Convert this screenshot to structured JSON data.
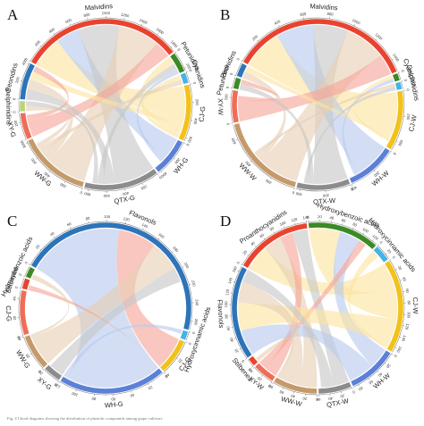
{
  "figure": {
    "caption": "Fig. 4 Chord diagrams showing the distribution of phenolic compounds among grape cultivars"
  },
  "colors": {
    "red": "#e9432f",
    "green": "#3b8a25",
    "yellow": "#f2c21b",
    "skyblue": "#44b4e4",
    "blue": "#2d74b8",
    "olive": "#b9d27a",
    "coral": "#ef6d58",
    "tan": "#c59a6a",
    "gray": "#8c8c8c",
    "periwinkle": "#5b80d6",
    "chord_red": "#f6a598",
    "chord_tan": "#e7cfb3",
    "chord_gray": "#c6c6c6",
    "chord_blue": "#b8c9ef",
    "chord_yellow": "#fbe3a0"
  },
  "chart_data": [
    {
      "panel": "A",
      "type": "chord",
      "segments": [
        {
          "label": "Malvidins",
          "value": 1860,
          "color": "red",
          "ticks": [
            0,
            200,
            400,
            600,
            800,
            1000,
            1200,
            1400,
            1600,
            1800
          ]
        },
        {
          "label": "Petunidins",
          "value": 230,
          "color": "green",
          "ticks": [
            0,
            200
          ]
        },
        {
          "label": "Cyanidins",
          "value": 120,
          "color": "skyblue",
          "ticks": [
            0
          ]
        },
        {
          "label": "CJ-G",
          "value": 640,
          "color": "yellow",
          "ticks": [
            0,
            200,
            400,
            600
          ]
        },
        {
          "label": "WH-G",
          "value": 430,
          "color": "periwinkle",
          "ticks": [
            0,
            200,
            400
          ]
        },
        {
          "label": "QTX-G",
          "value": 850,
          "color": "gray",
          "ticks": [
            0,
            200,
            400,
            600,
            800
          ]
        },
        {
          "label": "WW-G",
          "value": 820,
          "color": "tan",
          "ticks": [
            0,
            200,
            400,
            600,
            800
          ]
        },
        {
          "label": "XY-G",
          "value": 300,
          "color": "coral",
          "ticks": [
            0,
            200
          ]
        },
        {
          "label": "Delphinidins",
          "value": 120,
          "color": "olive",
          "ticks": [
            0
          ]
        },
        {
          "label": "Peonidins",
          "value": 420,
          "color": "blue",
          "ticks": [
            0,
            200,
            400
          ]
        }
      ],
      "chords": [
        {
          "source": "Malvidins",
          "target": "CJ-G",
          "value": 380,
          "color": "chord_yellow"
        },
        {
          "source": "Malvidins",
          "target": "WH-G",
          "value": 280,
          "color": "chord_blue"
        },
        {
          "source": "Malvidins",
          "target": "QTX-G",
          "value": 500,
          "color": "chord_gray"
        },
        {
          "source": "Malvidins",
          "target": "WW-G",
          "value": 500,
          "color": "chord_tan"
        },
        {
          "source": "Malvidins",
          "target": "XY-G",
          "value": 200,
          "color": "chord_red"
        },
        {
          "source": "Peonidins",
          "target": "QTX-G",
          "value": 130,
          "color": "chord_gray"
        },
        {
          "source": "Peonidins",
          "target": "WW-G",
          "value": 120,
          "color": "chord_tan"
        },
        {
          "source": "Peonidins",
          "target": "CJ-G",
          "value": 100,
          "color": "chord_yellow"
        },
        {
          "source": "Peonidins",
          "target": "XY-G",
          "value": 70,
          "color": "chord_red"
        },
        {
          "source": "Petunidins",
          "target": "CJ-G",
          "value": 100,
          "color": "chord_yellow"
        },
        {
          "source": "Petunidins",
          "target": "QTX-G",
          "value": 80,
          "color": "chord_gray"
        },
        {
          "source": "Petunidins",
          "target": "WH-G",
          "value": 50,
          "color": "chord_blue"
        },
        {
          "source": "Cyanidins",
          "target": "CJ-G",
          "value": 60,
          "color": "chord_yellow"
        },
        {
          "source": "Cyanidins",
          "target": "WW-G",
          "value": 60,
          "color": "chord_tan"
        },
        {
          "source": "Delphinidins",
          "target": "WW-G",
          "value": 60,
          "color": "chord_tan"
        },
        {
          "source": "Delphinidins",
          "target": "QTX-G",
          "value": 60,
          "color": "chord_gray"
        }
      ]
    },
    {
      "panel": "B",
      "type": "chord",
      "segments": [
        {
          "label": "Malvidins",
          "value": 1500,
          "color": "red",
          "ticks": [
            0,
            200,
            400,
            600,
            800,
            1000,
            1200,
            1400
          ]
        },
        {
          "label": "Cyanidins",
          "value": 60,
          "color": "green",
          "ticks": [
            0
          ]
        },
        {
          "label": "Delphinidins",
          "value": 60,
          "color": "skyblue",
          "ticks": [
            0
          ]
        },
        {
          "label": "CJ-W",
          "value": 480,
          "color": "yellow",
          "ticks": [
            0,
            200,
            400
          ]
        },
        {
          "label": "WH-W",
          "value": 400,
          "color": "periwinkle",
          "ticks": [
            0,
            200,
            400
          ]
        },
        {
          "label": "QTX-W",
          "value": 430,
          "color": "gray",
          "ticks": [
            0,
            200,
            400
          ]
        },
        {
          "label": "WW-W",
          "value": 720,
          "color": "tan",
          "ticks": [
            0,
            200,
            400,
            600
          ]
        },
        {
          "label": "XY-W",
          "value": 260,
          "color": "coral",
          "ticks": [
            0,
            200
          ]
        },
        {
          "label": "Petunidins",
          "value": 90,
          "color": "green",
          "ticks": [
            0
          ]
        },
        {
          "label": "Peonidins",
          "value": 110,
          "color": "blue",
          "ticks": [
            0
          ]
        }
      ],
      "chords": [
        {
          "source": "Malvidins",
          "target": "CJ-W",
          "value": 350,
          "color": "chord_yellow"
        },
        {
          "source": "Malvidins",
          "target": "WH-W",
          "value": 320,
          "color": "chord_blue"
        },
        {
          "source": "Malvidins",
          "target": "QTX-W",
          "value": 300,
          "color": "chord_gray"
        },
        {
          "source": "Malvidins",
          "target": "WW-W",
          "value": 350,
          "color": "chord_tan"
        },
        {
          "source": "Malvidins",
          "target": "XY-W",
          "value": 180,
          "color": "chord_red"
        },
        {
          "source": "Peonidins",
          "target": "WW-W",
          "value": 60,
          "color": "chord_tan"
        },
        {
          "source": "Peonidins",
          "target": "CJ-W",
          "value": 50,
          "color": "chord_yellow"
        },
        {
          "source": "Petunidins",
          "target": "QTX-W",
          "value": 50,
          "color": "chord_gray"
        },
        {
          "source": "Petunidins",
          "target": "XY-W",
          "value": 40,
          "color": "chord_red"
        },
        {
          "source": "Cyanidins",
          "target": "CJ-W",
          "value": 30,
          "color": "chord_yellow"
        },
        {
          "source": "Cyanidins",
          "target": "WH-W",
          "value": 30,
          "color": "chord_blue"
        },
        {
          "source": "Delphinidins",
          "target": "WW-W",
          "value": 30,
          "color": "chord_tan"
        },
        {
          "source": "Delphinidins",
          "target": "QTX-W",
          "value": 30,
          "color": "chord_gray"
        }
      ]
    },
    {
      "panel": "C",
      "type": "chord",
      "segments": [
        {
          "label": "Flavonols",
          "value": 270,
          "color": "blue",
          "ticks": [
            0,
            20,
            40,
            60,
            80,
            100,
            120,
            140,
            160,
            180,
            200,
            220,
            240,
            260
          ]
        },
        {
          "label": "Hydroxycinnamic acids",
          "value": 10,
          "color": "skyblue",
          "ticks": [
            0
          ]
        },
        {
          "label": "CJ-G",
          "value": 40,
          "color": "yellow",
          "ticks": [
            0,
            20,
            40
          ]
        },
        {
          "label": "WH-G",
          "value": 120,
          "color": "periwinkle",
          "ticks": [
            0,
            20,
            40,
            60,
            80,
            100,
            120
          ]
        },
        {
          "label": "XY-G",
          "value": 20,
          "color": "gray",
          "ticks": [
            0,
            20
          ]
        },
        {
          "label": "WW-G",
          "value": 40,
          "color": "tan",
          "ticks": [
            0,
            20,
            40
          ]
        },
        {
          "label": "CJ-G",
          "value": 50,
          "color": "coral",
          "ticks": [
            0,
            20,
            40
          ]
        },
        {
          "label": "Stilbenes",
          "value": 12,
          "color": "red",
          "ticks": [
            0
          ]
        },
        {
          "label": "Hydroxybenzoic acids",
          "value": 12,
          "color": "green",
          "ticks": [
            0
          ]
        }
      ],
      "chords": [
        {
          "source": "Flavonols",
          "target": "WH-G",
          "value": 115,
          "color": "chord_blue"
        },
        {
          "source": "Flavonols",
          "target": "CJ-G",
          "value": 45,
          "color": "chord_red"
        },
        {
          "source": "Flavonols",
          "target": "WW-G",
          "value": 36,
          "color": "chord_tan"
        },
        {
          "source": "Flavonols",
          "target": "XY-G",
          "value": 18,
          "color": "chord_gray"
        },
        {
          "source": "Hydroxycinnamic acids",
          "target": "WH-G",
          "value": 5,
          "color": "chord_blue"
        },
        {
          "source": "Stilbenes",
          "target": "CJ-G",
          "value": 6,
          "color": "chord_red"
        },
        {
          "source": "Hydroxybenzoic acids",
          "target": "WW-G",
          "value": 6,
          "color": "chord_tan"
        }
      ]
    },
    {
      "panel": "D",
      "type": "chord",
      "segments": [
        {
          "label": "Proanthocyanidins",
          "value": 140,
          "color": "red",
          "ticks": [
            0,
            20,
            40,
            60,
            80,
            100,
            120,
            140
          ]
        },
        {
          "label": "Hydroxybenzoic acids",
          "value": 130,
          "color": "green",
          "ticks": [
            0,
            20,
            40,
            60,
            80,
            100,
            120
          ]
        },
        {
          "label": "Hydroxycinnamic acids",
          "value": 30,
          "color": "skyblue",
          "ticks": [
            0,
            20
          ]
        },
        {
          "label": "CJ-W",
          "value": 170,
          "color": "yellow",
          "ticks": [
            0,
            20,
            40,
            60,
            80,
            100,
            120,
            140,
            160
          ]
        },
        {
          "label": "WH-W",
          "value": 90,
          "color": "periwinkle",
          "ticks": [
            0,
            20,
            40,
            60,
            80
          ]
        },
        {
          "label": "QTX-W",
          "value": 60,
          "color": "gray",
          "ticks": [
            0,
            20,
            40,
            60
          ]
        },
        {
          "label": "WW-W",
          "value": 80,
          "color": "tan",
          "ticks": [
            0,
            20,
            40,
            60,
            80
          ]
        },
        {
          "label": "XY-W",
          "value": 40,
          "color": "coral",
          "ticks": [
            0,
            20,
            40
          ]
        },
        {
          "label": "Stilbenes",
          "value": 15,
          "color": "red",
          "ticks": [
            0
          ]
        },
        {
          "label": "Flavonols",
          "value": 170,
          "color": "blue",
          "ticks": [
            0,
            20,
            40,
            60,
            80,
            100,
            120,
            140,
            160
          ]
        }
      ],
      "chords": [
        {
          "source": "Proanthocyanidins",
          "target": "CJ-W",
          "value": 50,
          "color": "chord_yellow"
        },
        {
          "source": "Proanthocyanidins",
          "target": "WW-W",
          "value": 35,
          "color": "chord_tan"
        },
        {
          "source": "Proanthocyanidins",
          "target": "XY-W",
          "value": 25,
          "color": "chord_red"
        },
        {
          "source": "Proanthocyanidins",
          "target": "QTX-W",
          "value": 30,
          "color": "chord_gray"
        },
        {
          "source": "Hydroxybenzoic acids",
          "target": "CJ-W",
          "value": 60,
          "color": "chord_yellow"
        },
        {
          "source": "Hydroxybenzoic acids",
          "target": "WH-W",
          "value": 40,
          "color": "chord_blue"
        },
        {
          "source": "Hydroxybenzoic acids",
          "target": "XY-W",
          "value": 15,
          "color": "chord_red"
        },
        {
          "source": "Flavonols",
          "target": "WH-W",
          "value": 50,
          "color": "chord_blue"
        },
        {
          "source": "Flavonols",
          "target": "CJ-W",
          "value": 55,
          "color": "chord_yellow"
        },
        {
          "source": "Flavonols",
          "target": "WW-W",
          "value": 40,
          "color": "chord_tan"
        },
        {
          "source": "Flavonols",
          "target": "QTX-W",
          "value": 25,
          "color": "chord_gray"
        },
        {
          "source": "Hydroxycinnamic acids",
          "target": "CJ-W",
          "value": 15,
          "color": "chord_yellow"
        },
        {
          "source": "Stilbenes",
          "target": "WW-W",
          "value": 8,
          "color": "chord_tan"
        }
      ]
    }
  ]
}
